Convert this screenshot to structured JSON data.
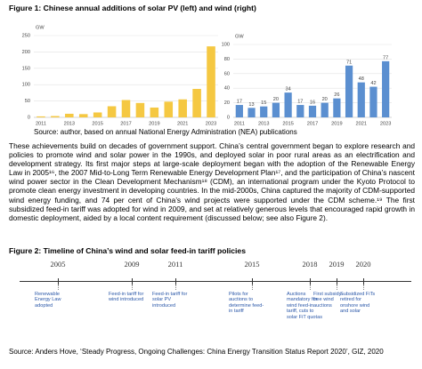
{
  "figure1": {
    "title": "Figure 1: Chinese annual additions of solar PV (left) and wind (right)",
    "source": "Source: author, based on annual National Energy Administration (NEA) publications"
  },
  "chart_data": [
    {
      "type": "bar",
      "ylabel": "GW",
      "categories": [
        "2011",
        null,
        "2013",
        null,
        "2015",
        null,
        "2017",
        null,
        "2019",
        null,
        "2021",
        null,
        "2023"
      ],
      "values": [
        3,
        4,
        11,
        10,
        15,
        34,
        53,
        44,
        30,
        48,
        55,
        87,
        217
      ],
      "color": "#f5c842",
      "ylim": [
        0,
        250
      ],
      "yticks": [
        0,
        50,
        100,
        150,
        200,
        250
      ],
      "grid": true,
      "data_labels": false
    },
    {
      "type": "bar",
      "ylabel": "GW",
      "categories": [
        "2011",
        null,
        "2013",
        null,
        "2015",
        null,
        "2017",
        null,
        "2019",
        null,
        "2021",
        null,
        "2023"
      ],
      "values": [
        17,
        13,
        15,
        20,
        34,
        17,
        16,
        20,
        26,
        71,
        48,
        42,
        77
      ],
      "color": "#5b8fd0",
      "ylim": [
        0,
        100
      ],
      "yticks": [
        0,
        20,
        40,
        60,
        80,
        100
      ],
      "grid": true,
      "data_labels": true
    }
  ],
  "paragraph": "These achievements build on decades of government support. China’s central government began to explore research and policies to promote wind and solar power in the 1990s, and deployed solar in poor rural areas as an electrification and development strategy. Its first major steps at large-scale deployment began with the adoption of the Renewable Energy Law in 2005¹⁶, the 2007 Mid-to-Long Term Renewable Energy Development Plan¹⁷, and the participation of China’s nascent wind power sector in the Clean Development Mechanism¹⁸ (CDM), an international program under the Kyoto Protocol to promote clean energy investment in developing countries. In the mid-2000s, China captured the majority of CDM-supported wind energy funding, and 74 per cent of China’s wind projects were supported under the CDM scheme.¹⁹ The first subsidized feed-in tariff was adopted for wind in 2009, and set at relatively generous levels that encouraged rapid growth in domestic deployment, aided by a local content requirement (discussed below; see also Figure 2).",
  "figure2": {
    "title": "Figure 2: Timeline of China’s wind and solar feed-in tariff policies",
    "timeline": [
      {
        "year": "2005",
        "label": "Renewable Energy Law adopted"
      },
      {
        "year": "2009",
        "label": "Feed-in tariff for wind introduced"
      },
      {
        "year": "2011",
        "label": "Feed-in tariff for solar PV introduced"
      },
      {
        "year": "2015",
        "label": "Pilots for auctions to determine feed-in tariff"
      },
      {
        "year": "2018",
        "label": "Auctions mandatory for wind feed-in tariff, cuts to solar FiT quotas"
      },
      {
        "year": "2019",
        "label": "First subsidy-free wind auctions"
      },
      {
        "year": "2020",
        "label": "Subsidized FiTs retired for onshore wind and solar"
      }
    ],
    "source": "Source: Anders Hove, ‘Steady Progress, Ongoing Challenges: China Energy Transition Status Report 2020’, GIZ, 2020"
  }
}
